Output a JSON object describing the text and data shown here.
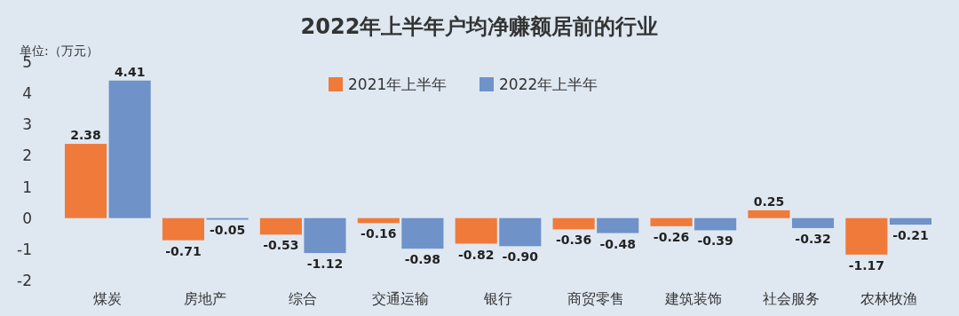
{
  "chart_data": {
    "type": "bar",
    "title": "2022年上半年户均净赚额居前的行业",
    "ylabel": "单位:（万元）",
    "categories": [
      "煤炭",
      "房地产",
      "综合",
      "交通运输",
      "银行",
      "商贸零售",
      "建筑装饰",
      "社会服务",
      "农林牧渔"
    ],
    "series": [
      {
        "name": "2021年上半年",
        "color": "#f07a3a",
        "values": [
          2.38,
          -0.71,
          -0.53,
          -0.16,
          -0.82,
          -0.36,
          -0.26,
          0.25,
          -1.17
        ],
        "value_labels": [
          "2.38",
          "-0.71",
          "-0.53",
          "-0.16",
          "-0.82",
          "-0.36",
          "-0.26",
          "0.25",
          "-1.17"
        ]
      },
      {
        "name": "2022年上半年",
        "color": "#6f92c8",
        "values": [
          4.41,
          -0.05,
          -1.12,
          -0.98,
          -0.9,
          -0.48,
          -0.39,
          -0.32,
          -0.21
        ],
        "value_labels": [
          "4.41",
          "-0.05",
          "-1.12",
          "-0.98",
          "-0.90",
          "-0.48",
          "-0.39",
          "-0.32",
          "-0.21"
        ]
      }
    ],
    "ylim": [
      -2,
      5
    ],
    "yticks": [
      -2,
      -1,
      0,
      1,
      2,
      3,
      4,
      5
    ],
    "legend": "top",
    "grid": false
  }
}
